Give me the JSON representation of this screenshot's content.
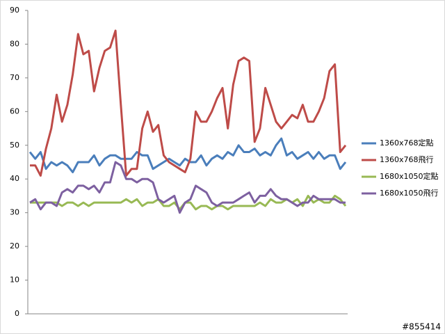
{
  "chart_data": {
    "type": "line",
    "categories": [
      null,
      null,
      null,
      null,
      null,
      null,
      null,
      null,
      null,
      null,
      null,
      null,
      null,
      null,
      null,
      null,
      null,
      null,
      null,
      null,
      null,
      null,
      null,
      null,
      null,
      null,
      null,
      null,
      null,
      null,
      null,
      null,
      null,
      null,
      null,
      null,
      null,
      null,
      null,
      null,
      null,
      null,
      null,
      null,
      null,
      null,
      null,
      null,
      null,
      null,
      null,
      null,
      null,
      null,
      null,
      null,
      null,
      null,
      null,
      null
    ],
    "ylim": [
      0,
      90
    ],
    "yticks": [
      0,
      10,
      20,
      30,
      40,
      50,
      60,
      70,
      80,
      90
    ],
    "grid": false,
    "legend": "right",
    "watermark": "#855414",
    "series": [
      {
        "name": "1360x768定點",
        "color": "#4a7ebb",
        "values": [
          48,
          46,
          48,
          43,
          45,
          44,
          45,
          44,
          42,
          45,
          45,
          45,
          47,
          44,
          46,
          47,
          47,
          46,
          46,
          46,
          48,
          47,
          47,
          43,
          44,
          45,
          46,
          45,
          44,
          46,
          45,
          45,
          47,
          44,
          46,
          47,
          46,
          48,
          47,
          50,
          48,
          48,
          49,
          47,
          48,
          47,
          50,
          52,
          47,
          48,
          46,
          47,
          48,
          46,
          48,
          46,
          47,
          47,
          43,
          45
        ]
      },
      {
        "name": "1360x768飛行",
        "color": "#be4b48",
        "values": [
          44,
          44,
          41,
          49,
          55,
          65,
          57,
          62,
          71,
          83,
          77,
          78,
          66,
          73,
          78,
          79,
          84,
          62,
          41,
          43,
          43,
          55,
          60,
          54,
          56,
          47,
          45,
          44,
          43,
          42,
          46,
          60,
          57,
          57,
          60,
          64,
          67,
          55,
          68,
          75,
          76,
          75,
          51,
          55,
          67,
          62,
          57,
          55,
          57,
          59,
          58,
          62,
          57,
          57,
          60,
          64,
          72,
          74,
          48,
          50
        ]
      },
      {
        "name": "1680x1050定點",
        "color": "#98b954",
        "values": [
          33,
          33,
          33,
          33,
          33,
          33,
          32,
          33,
          33,
          32,
          33,
          32,
          33,
          33,
          33,
          33,
          33,
          33,
          34,
          33,
          34,
          32,
          33,
          33,
          34,
          32,
          32,
          33,
          31,
          33,
          33,
          31,
          32,
          32,
          31,
          32,
          32,
          31,
          32,
          32,
          32,
          32,
          32,
          33,
          32,
          34,
          33,
          33,
          34,
          33,
          34,
          32,
          35,
          33,
          34,
          33,
          33,
          35,
          34,
          32
        ]
      },
      {
        "name": "1680x1050飛行",
        "color": "#7d60a0",
        "values": [
          33,
          34,
          31,
          33,
          33,
          32,
          36,
          37,
          36,
          38,
          38,
          37,
          38,
          36,
          39,
          39,
          45,
          44,
          40,
          40,
          39,
          40,
          40,
          39,
          34,
          33,
          34,
          35,
          30,
          33,
          34,
          38,
          37,
          36,
          33,
          32,
          33,
          33,
          33,
          34,
          35,
          36,
          33,
          35,
          35,
          37,
          35,
          34,
          34,
          33,
          32,
          33,
          33,
          35,
          34,
          34,
          34,
          34,
          33,
          33
        ]
      }
    ]
  }
}
